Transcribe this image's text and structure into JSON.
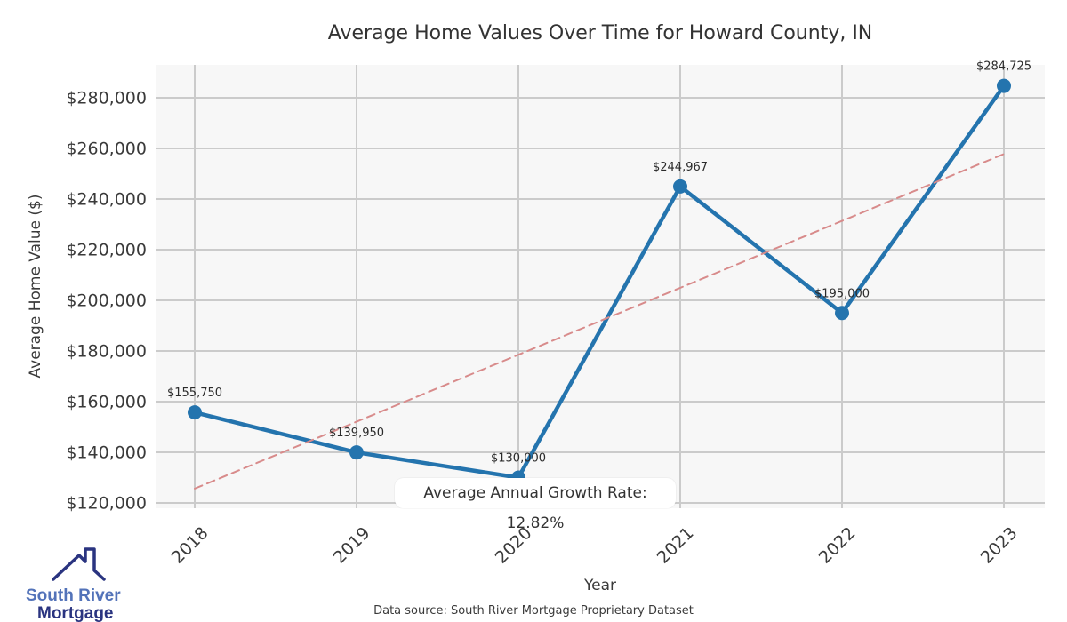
{
  "title": "Average Home Values Over Time for Howard County, IN",
  "chart_data": {
    "type": "line",
    "x": [
      "2018",
      "2019",
      "2020",
      "2021",
      "2022",
      "2023"
    ],
    "series": [
      {
        "name": "Average Home Value",
        "values": [
          155750,
          139950,
          130000,
          244967,
          195000,
          284725
        ],
        "color": "#2474ae",
        "style": "solid",
        "markers": true,
        "width": 4.5
      },
      {
        "name": "Linear trend",
        "values": [
          125661,
          257803
        ],
        "color": "#d88b8b",
        "style": "dashed",
        "markers": false,
        "width": 2
      }
    ],
    "point_labels": [
      "$155,750",
      "$139,950",
      "$130,000",
      "$244,967",
      "$195,000",
      "$284,725"
    ],
    "title": "Average Home Values Over Time for Howard County, IN",
    "xlabel": "Year",
    "ylabel": "Average Home Value ($)",
    "y_tick_values": [
      120000,
      140000,
      160000,
      180000,
      200000,
      220000,
      240000,
      260000,
      280000
    ],
    "y_tick_labels": [
      "$120,000",
      "$140,000",
      "$160,000",
      "$180,000",
      "$200,000",
      "$220,000",
      "$240,000",
      "$260,000",
      "$280,000"
    ],
    "ylim": [
      117900,
      293000
    ],
    "grid": true,
    "legend_position": "none",
    "annotation": "Average Annual Growth Rate: 12.82%"
  },
  "annotation": {
    "label": "Average Annual Growth Rate: 12.82%"
  },
  "footer": {
    "source": "Data source: South River Mortgage Proprietary Dataset"
  },
  "logo": {
    "line1": "South River",
    "line2": "Mortgage"
  },
  "colors": {
    "line": "#2474ae",
    "trend": "#d88b8b",
    "plot_background": "#f7f7f7",
    "grid": "#cbcbcb",
    "tick_text": "#3a3a3a",
    "label_text": "#2b2b2b",
    "logo_light_blue": "#5373b9",
    "logo_dark_blue": "#2a3480"
  }
}
